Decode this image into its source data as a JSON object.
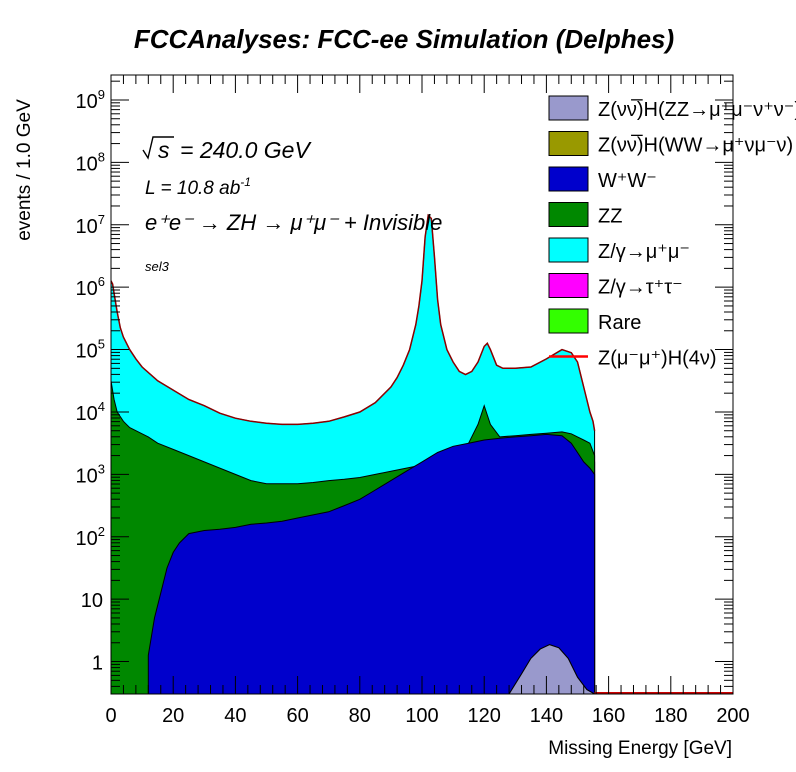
{
  "chart_data": {
    "type": "area",
    "title": "FCCAnalyses: FCC-ee Simulation (Delphes)",
    "xlabel": "Missing Energy [GeV]",
    "ylabel": "events / 1.0 GeV",
    "xlim": [
      0,
      200
    ],
    "ylim_log10": [
      -0.52,
      9.4
    ],
    "yscale": "log",
    "grid": false,
    "legend_position": "top-right",
    "x_ticks": [
      "0",
      "20",
      "40",
      "60",
      "80",
      "100",
      "120",
      "140",
      "160",
      "180",
      "200"
    ],
    "y_ticks": [
      {
        "exp": 0,
        "mant": "1",
        "sup": ""
      },
      {
        "exp": 1,
        "mant": "10",
        "sup": ""
      },
      {
        "exp": 2,
        "mant": "10",
        "sup": "2"
      },
      {
        "exp": 3,
        "mant": "10",
        "sup": "3"
      },
      {
        "exp": 4,
        "mant": "10",
        "sup": "4"
      },
      {
        "exp": 5,
        "mant": "10",
        "sup": "5"
      },
      {
        "exp": 6,
        "mant": "10",
        "sup": "6"
      },
      {
        "exp": 7,
        "mant": "10",
        "sup": "7"
      },
      {
        "exp": 8,
        "mant": "10",
        "sup": "8"
      },
      {
        "exp": 9,
        "mant": "10",
        "sup": "9"
      }
    ],
    "annotations": {
      "sqrt_s": "= 240.0 GeV",
      "lumi_prefix": "L = 10.8 ab",
      "lumi_sup": "-1",
      "process": "e⁺e⁻ → ZH → μ⁺μ⁻ + Invisible",
      "selection": "sel3"
    },
    "stack_order_bottom_to_top": [
      "ZvvH_ZZ",
      "ZvvH_WW",
      "WW",
      "ZZ",
      "Zmumu",
      "Ztautau",
      "Rare"
    ],
    "series": [
      {
        "id": "ZvvH_ZZ",
        "name": "Z(νν̅)H(ZZ→μ⁺μ⁻ν⁺ν⁻)",
        "color": "#9999cc",
        "x": [
          128,
          132,
          135,
          138,
          141,
          144,
          147,
          150,
          153,
          155.5
        ],
        "log10_top": [
          -0.52,
          -0.2,
          0.05,
          0.2,
          0.27,
          0.22,
          0.05,
          -0.25,
          -0.45,
          -0.52
        ]
      },
      {
        "id": "ZvvH_WW",
        "name": "Z(νν̅)H(WW→μ⁺νμ⁻ν)",
        "color": "#999900",
        "x": [
          128,
          132,
          135,
          138,
          141,
          144,
          147,
          150,
          153,
          155.5
        ],
        "log10_top": [
          -0.52,
          -0.2,
          0.05,
          0.2,
          0.27,
          0.22,
          0.05,
          -0.25,
          -0.45,
          -0.52
        ]
      },
      {
        "id": "WW",
        "name": "W⁺W⁻",
        "color": "#0000cc",
        "x": [
          12,
          14,
          16,
          18,
          20,
          22,
          25,
          30,
          35,
          40,
          45,
          50,
          55,
          60,
          65,
          70,
          75,
          80,
          85,
          90,
          95,
          100,
          105,
          110,
          115,
          120,
          125,
          130,
          135,
          140,
          145,
          148,
          150,
          152,
          154,
          155.5
        ],
        "log10_top": [
          0.1,
          0.7,
          1.1,
          1.5,
          1.75,
          1.9,
          2.05,
          2.1,
          2.12,
          2.15,
          2.2,
          2.22,
          2.25,
          2.3,
          2.35,
          2.4,
          2.5,
          2.6,
          2.75,
          2.9,
          3.05,
          3.2,
          3.35,
          3.45,
          3.5,
          3.55,
          3.58,
          3.6,
          3.62,
          3.64,
          3.62,
          3.5,
          3.35,
          3.2,
          3.1,
          3.0
        ]
      },
      {
        "id": "ZZ",
        "name": "ZZ",
        "color": "#008800",
        "x": [
          0,
          1,
          2,
          4,
          6,
          8,
          10,
          12,
          15,
          20,
          25,
          30,
          35,
          40,
          45,
          50,
          55,
          60,
          65,
          70,
          75,
          80,
          85,
          90,
          95,
          100,
          103,
          106,
          110,
          115,
          118,
          120,
          122,
          125,
          130,
          135,
          140,
          145,
          148,
          150,
          152,
          154,
          155.5
        ],
        "log10_top": [
          4.5,
          4.2,
          4.0,
          3.85,
          3.75,
          3.7,
          3.65,
          3.6,
          3.5,
          3.4,
          3.3,
          3.2,
          3.1,
          3.0,
          2.9,
          2.85,
          2.85,
          2.85,
          2.87,
          2.9,
          2.92,
          2.95,
          3.0,
          3.05,
          3.1,
          3.15,
          3.2,
          3.25,
          3.35,
          3.5,
          3.8,
          4.1,
          3.8,
          3.6,
          3.62,
          3.64,
          3.66,
          3.68,
          3.65,
          3.6,
          3.55,
          3.5,
          3.3
        ]
      },
      {
        "id": "Zmumu",
        "name": "Z/γ→μ⁺μ⁻",
        "color": "#00ffff",
        "x": [
          0,
          0.5,
          1,
          2,
          3,
          4,
          6,
          8,
          10,
          15,
          20,
          25,
          30,
          35,
          40,
          45,
          50,
          55,
          60,
          65,
          70,
          75,
          80,
          85,
          90,
          92,
          94,
          96,
          98,
          99,
          100,
          101,
          102,
          103,
          104,
          105,
          106,
          108,
          110,
          112,
          114,
          116,
          118,
          120,
          121,
          122,
          124,
          126,
          128,
          130,
          135,
          140,
          145,
          148,
          150,
          152,
          153,
          154,
          155,
          155.5
        ],
        "log10_top": [
          6.1,
          6.05,
          5.9,
          5.6,
          5.35,
          5.2,
          5.0,
          4.85,
          4.72,
          4.5,
          4.35,
          4.2,
          4.1,
          3.98,
          3.9,
          3.85,
          3.82,
          3.8,
          3.8,
          3.82,
          3.85,
          3.92,
          4.0,
          4.15,
          4.4,
          4.55,
          4.75,
          5.0,
          5.4,
          5.7,
          6.1,
          6.8,
          7.15,
          7.1,
          6.5,
          5.8,
          5.4,
          5.0,
          4.8,
          4.65,
          4.6,
          4.65,
          4.8,
          5.05,
          5.1,
          5.0,
          4.75,
          4.7,
          4.7,
          4.7,
          4.72,
          4.85,
          5.0,
          4.95,
          4.8,
          4.4,
          4.2,
          4.0,
          3.85,
          3.7
        ]
      },
      {
        "id": "Ztautau",
        "name": "Z/γ→τ⁺τ⁻",
        "color": "#ff00ff",
        "x": [
          8,
          10,
          12,
          15,
          20,
          25,
          30,
          35,
          40,
          45,
          50,
          55,
          60,
          65,
          70,
          75,
          80,
          85,
          90,
          95,
          100,
          105,
          110,
          115,
          120,
          125,
          130,
          135,
          140,
          145,
          148,
          150,
          152,
          154,
          155.5
        ],
        "log10_top": [
          -0.3,
          -0.2,
          0.1,
          0.3,
          0.5,
          0.75,
          0.8,
          0.85,
          0.9,
          0.95,
          1.0,
          1.05,
          1.1,
          1.2,
          1.3,
          1.45,
          1.6,
          1.75,
          1.9,
          2.0,
          2.2,
          2.4,
          2.6,
          2.75,
          2.9,
          3.0,
          3.1,
          3.2,
          3.3,
          3.4,
          3.45,
          3.4,
          3.3,
          2.4,
          -0.52
        ]
      },
      {
        "id": "Rare",
        "name": "Rare",
        "color": "#33ff00",
        "x": [
          0,
          1,
          2,
          4,
          6,
          8,
          10,
          12,
          15,
          20,
          25,
          30,
          35,
          40,
          45,
          50,
          55,
          60,
          65,
          70,
          75,
          80,
          85,
          90,
          95,
          97,
          99,
          100,
          101,
          102,
          103,
          104,
          105,
          106,
          108,
          110,
          114,
          118,
          120,
          122,
          125,
          130,
          135,
          140,
          145,
          148,
          150,
          152,
          154,
          155.5
        ],
        "log10_top": [
          4.5,
          4.2,
          4.0,
          3.85,
          3.75,
          3.7,
          3.65,
          3.6,
          3.5,
          3.4,
          3.3,
          3.2,
          3.1,
          3.0,
          2.9,
          2.85,
          2.85,
          2.85,
          2.87,
          2.9,
          2.95,
          3.0,
          3.1,
          3.2,
          3.4,
          3.55,
          3.8,
          4.2,
          4.8,
          5.3,
          5.1,
          4.5,
          4.1,
          3.9,
          3.7,
          3.65,
          3.65,
          3.7,
          3.72,
          3.72,
          3.75,
          3.8,
          3.9,
          4.0,
          4.1,
          4.0,
          3.8,
          3.6,
          3.4,
          3.2
        ]
      },
      {
        "id": "ZH_4nu",
        "name": "Z(μ⁻μ⁺)H(4ν)",
        "color": "#ff0000",
        "style": "line",
        "x": [
          155.5,
          160,
          170,
          180,
          190,
          200
        ],
        "log10_top": [
          -0.52,
          -0.52,
          -0.52,
          -0.52,
          -0.52,
          -0.52
        ]
      }
    ]
  }
}
